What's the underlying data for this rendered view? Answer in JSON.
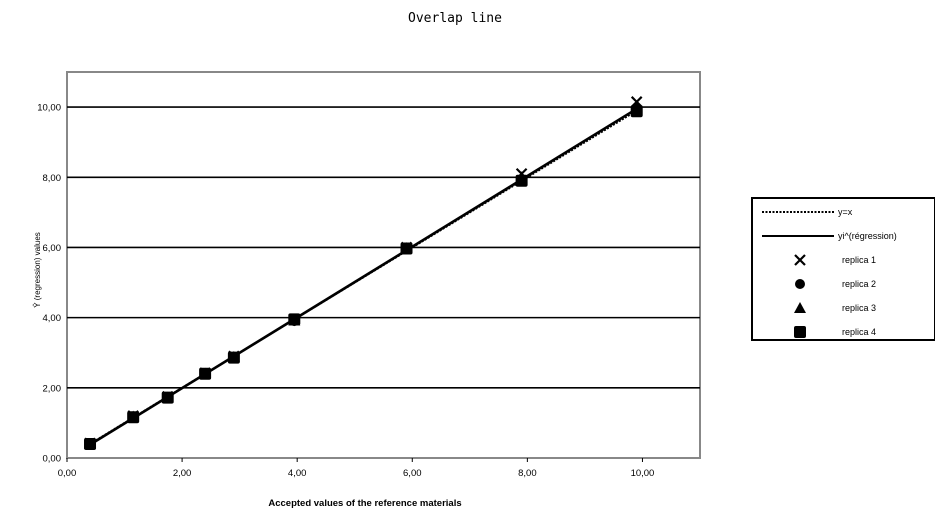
{
  "chart_data": {
    "type": "scatter",
    "title": "Overlap line",
    "xlabel": "Accepted values of the reference materials",
    "ylabel": "Ŷ (regression) values",
    "xlim": [
      0,
      11
    ],
    "ylim": [
      0,
      11
    ],
    "x_ticks": [
      "0,00",
      "2,00",
      "4,00",
      "6,00",
      "8,00",
      "10,00"
    ],
    "y_ticks": [
      "0,00",
      "2,00",
      "4,00",
      "6,00",
      "8,00",
      "10,00"
    ],
    "grid": "horizontal",
    "legend_position": "right",
    "lines": [
      {
        "name": "y=x",
        "style": "dotted",
        "points": [
          [
            0.4,
            0.4
          ],
          [
            10.0,
            10.0
          ]
        ]
      },
      {
        "name": "yi^(régression)",
        "style": "solid",
        "points": [
          [
            0.4,
            0.38
          ],
          [
            9.9,
            9.95
          ]
        ]
      }
    ],
    "series": [
      {
        "name": "replica 1",
        "marker": "x",
        "points": [
          [
            0.4,
            0.42
          ],
          [
            1.15,
            1.2
          ],
          [
            1.75,
            1.75
          ],
          [
            2.4,
            2.42
          ],
          [
            2.9,
            2.9
          ],
          [
            3.95,
            3.95
          ],
          [
            5.9,
            6.0
          ],
          [
            7.9,
            8.1
          ],
          [
            9.9,
            10.15
          ]
        ]
      },
      {
        "name": "replica 2",
        "marker": "o",
        "points": [
          [
            0.4,
            0.38
          ],
          [
            1.15,
            1.15
          ],
          [
            1.75,
            1.7
          ],
          [
            2.4,
            2.38
          ],
          [
            2.9,
            2.85
          ],
          [
            3.95,
            3.9
          ],
          [
            5.9,
            5.95
          ],
          [
            7.9,
            7.95
          ],
          [
            9.9,
            9.95
          ]
        ]
      },
      {
        "name": "replica 3",
        "marker": "triangle",
        "points": [
          [
            0.4,
            0.4
          ],
          [
            1.15,
            1.18
          ],
          [
            1.75,
            1.72
          ],
          [
            2.4,
            2.4
          ],
          [
            2.9,
            2.88
          ],
          [
            3.95,
            3.92
          ],
          [
            5.9,
            5.98
          ],
          [
            7.9,
            8.0
          ],
          [
            9.9,
            10.0
          ]
        ]
      },
      {
        "name": "replica 4",
        "marker": "square",
        "points": [
          [
            0.4,
            0.4
          ],
          [
            1.15,
            1.16
          ],
          [
            1.75,
            1.72
          ],
          [
            2.4,
            2.4
          ],
          [
            2.9,
            2.86
          ],
          [
            3.95,
            3.95
          ],
          [
            5.9,
            5.97
          ],
          [
            7.9,
            7.9
          ],
          [
            9.9,
            9.88
          ]
        ]
      }
    ]
  }
}
